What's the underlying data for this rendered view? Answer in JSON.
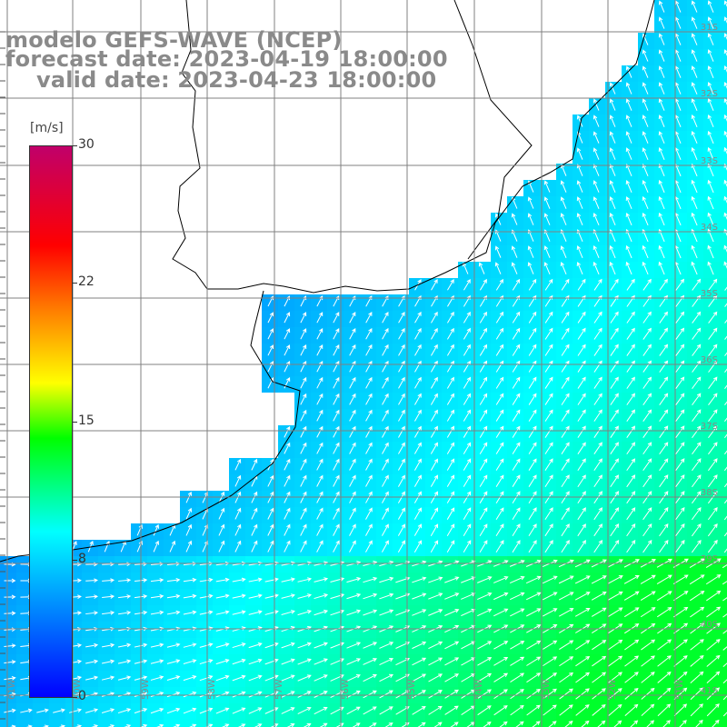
{
  "header": {
    "model": "modelo GEFS-WAVE (NCEP)",
    "forecast": "forecast date: 2023-04-19 18:00:00",
    "valid": "valid date: 2023-04-23 18:00:00"
  },
  "colorbar": {
    "unit": "[m/s]",
    "ticks": [
      "0",
      "8",
      "15",
      "22",
      "30"
    ],
    "tick_values": [
      0,
      8,
      15,
      22,
      30
    ],
    "range": [
      0,
      30
    ],
    "colors": [
      "#0000ff",
      "#00ffff",
      "#00ff00",
      "#ffff00",
      "#ff8000",
      "#ff0000",
      "#c0006a"
    ]
  },
  "map": {
    "lat_labels": [
      "31S",
      "32S",
      "33S",
      "34S",
      "35S",
      "36S",
      "37S",
      "38S",
      "39S",
      "40S",
      "41S"
    ],
    "lon_labels": [
      "61W",
      "60W",
      "59W",
      "58W",
      "57W",
      "56W",
      "55W",
      "54W",
      "53W",
      "52W",
      "51W"
    ],
    "land_color": "#ffffff",
    "grid_color": "#808080",
    "field": "wind speed with direction arrows"
  }
}
